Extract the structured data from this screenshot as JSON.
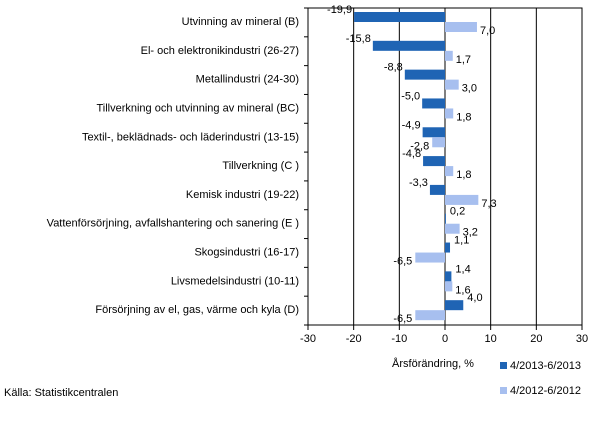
{
  "chart_data": {
    "type": "bar",
    "orientation": "horizontal",
    "categories": [
      "Utvinning av mineral  (B)",
      "El- och elektronikindustri (26-27)",
      "Metallindustri (24-30)",
      "Tillverkning och utvinning av mineral (BC)",
      "Textil-, beklädnads- och läderindustri (13-15)",
      "Tillverkning (C )",
      "Kemisk industri (19-22)",
      "Vattenförsörjning, avfallshantering och sanering (E )",
      "Skogsindustri (16-17)",
      "Livsmedelsindustri (10-11)",
      "Försörjning av el, gas, värme och kyla (D)"
    ],
    "series": [
      {
        "name": "4/2013-6/2013",
        "color": "#1f64b4",
        "values": [
          -19.9,
          -15.8,
          -8.8,
          -5.0,
          -4.9,
          -4.8,
          -3.3,
          0.2,
          1.1,
          1.4,
          4.0
        ],
        "labels": [
          "-19,9",
          "-15,8",
          "-8,8",
          "-5,0",
          "-4,9",
          "-4,8",
          "-3,3",
          "0,2",
          "1,1",
          "1,4",
          "4,0"
        ]
      },
      {
        "name": "4/2012-6/2012",
        "color": "#a7bfef",
        "values": [
          7.0,
          1.7,
          3.0,
          1.8,
          -2.8,
          1.8,
          7.3,
          3.2,
          -6.5,
          1.6,
          -6.5
        ],
        "labels": [
          "7,0",
          "1,7",
          "3,0",
          "1,8",
          "-2,8",
          "1,8",
          "7,3",
          "3,2",
          "-6,5",
          "1,6",
          "-6,5"
        ]
      }
    ],
    "xlabel": "Årsförändring, %",
    "xlim": [
      -30,
      30
    ],
    "xticks": [
      -30,
      -20,
      -10,
      0,
      10,
      20,
      30
    ],
    "xtick_labels": [
      "-30",
      "-20",
      "-10",
      "0",
      "10",
      "20",
      "30"
    ],
    "grid": "vertical",
    "legend_position": "bottom-right"
  },
  "source": "Källa: Statistikcentralen"
}
